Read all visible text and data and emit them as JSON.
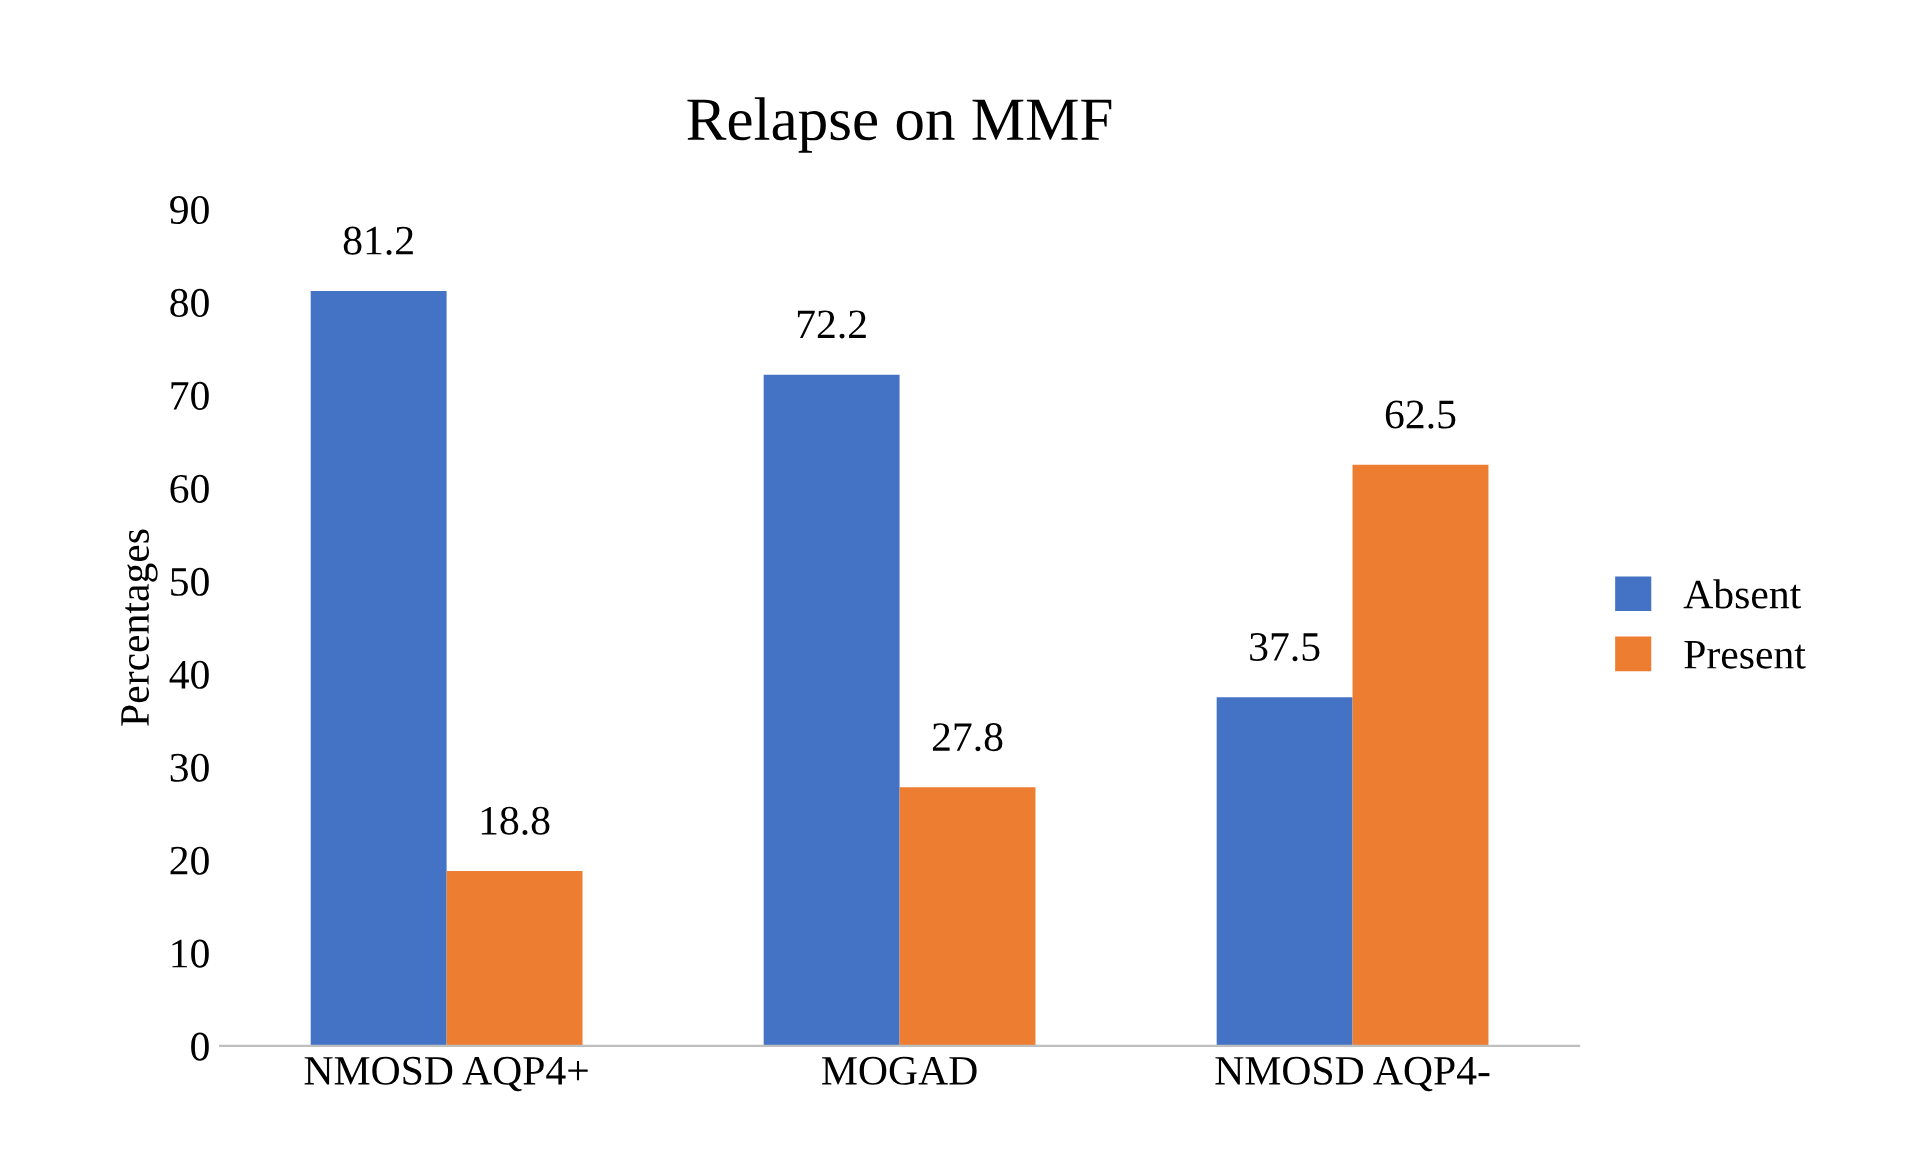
{
  "chart_data": {
    "type": "bar",
    "title": "Relapse on MMF",
    "ylabel": "Percentages",
    "categories": [
      "NMOSD AQP4+",
      "MOGAD",
      "NMOSD AQP4-"
    ],
    "series": [
      {
        "name": "Absent",
        "color": "#4472c4",
        "values": [
          81.2,
          72.2,
          37.5
        ]
      },
      {
        "name": "Present",
        "color": "#ed7d31",
        "values": [
          18.8,
          27.8,
          62.5
        ]
      }
    ],
    "ylim": [
      0,
      90
    ],
    "yticks": [
      0,
      10,
      20,
      30,
      40,
      50,
      60,
      70,
      80,
      90
    ],
    "data_labels": true,
    "legend": "right",
    "grid": false
  }
}
